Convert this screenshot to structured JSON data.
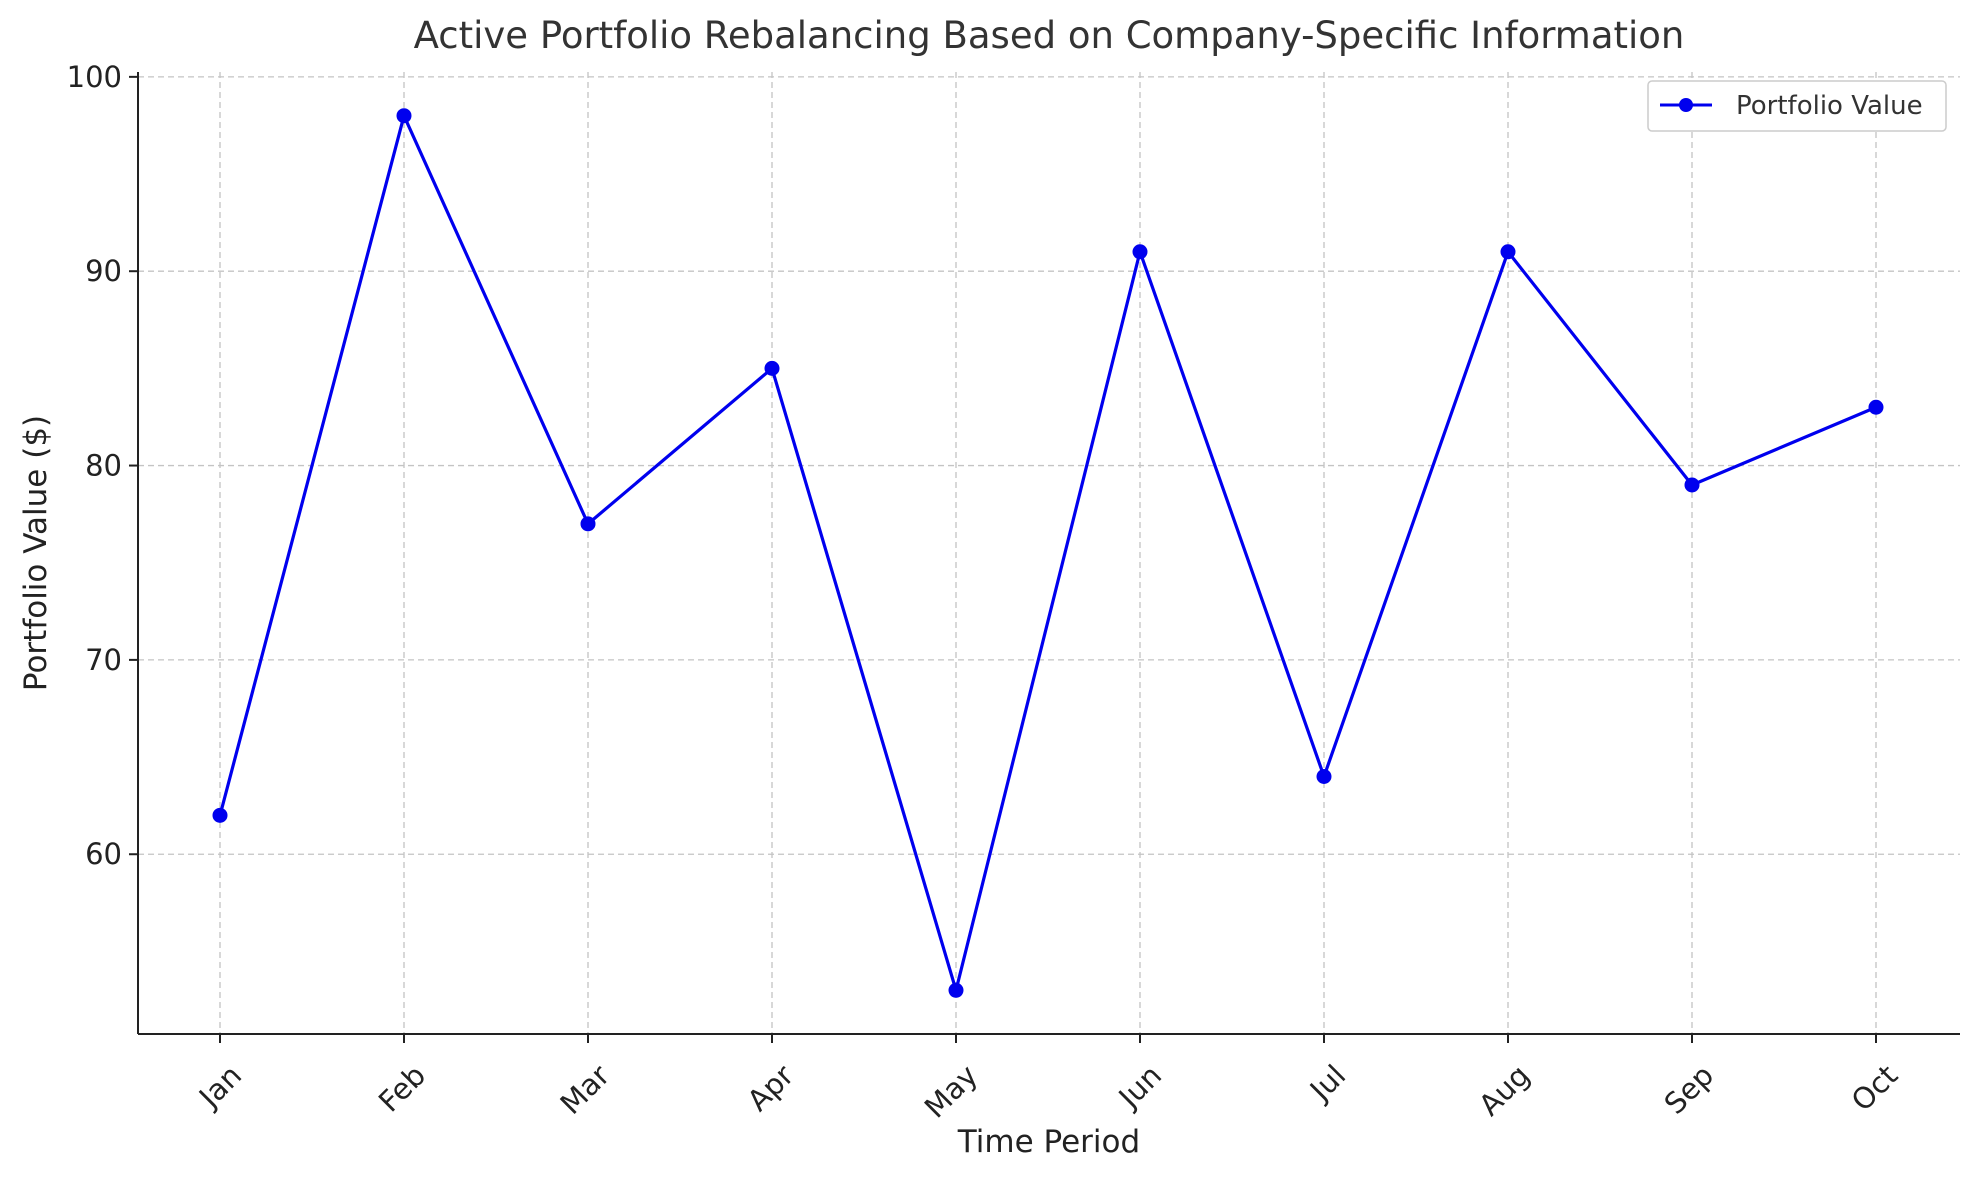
{
  "chart_data": {
    "type": "line",
    "title": "Active Portfolio Rebalancing Based on Company-Specific Information",
    "xlabel": "Time Period",
    "ylabel": "Portfolio Value ($)",
    "categories": [
      "Jan",
      "Feb",
      "Mar",
      "Apr",
      "May",
      "Jun",
      "Jul",
      "Aug",
      "Sep",
      "Oct"
    ],
    "series": [
      {
        "name": "Portfolio Value",
        "values": [
          62,
          98,
          77,
          85,
          53,
          91,
          64,
          91,
          79,
          83
        ],
        "color": "#0000ee",
        "marker": "circle"
      }
    ],
    "ylim": [
      50.75,
      100.25
    ],
    "yticks": [
      60,
      70,
      80,
      90,
      100
    ],
    "grid": true,
    "legend": "top-right",
    "xtick_rotation": 45
  }
}
